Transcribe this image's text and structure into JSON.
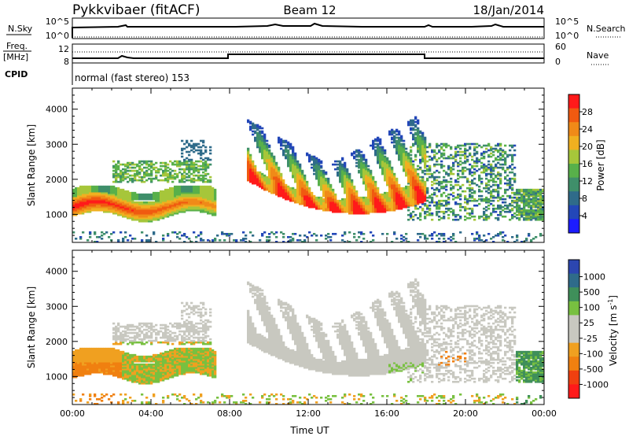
{
  "header": {
    "station": "Pykkvibaer (fitACF)",
    "beam": "Beam 12",
    "date": "18/Jan/2014"
  },
  "top_panels": {
    "noise": {
      "left_label": "N.Sky",
      "right_label": "N.Search",
      "tick_top": "10^5",
      "tick_bottom": "10^0",
      "right_tick_top": "10^5",
      "right_tick_bottom": "10^0"
    },
    "freq": {
      "left_label_line1": "Freq.",
      "left_label_line2": "[MHz]",
      "tick_top": "12",
      "tick_bottom": "8",
      "right_label": "Nave",
      "right_tick_top": "60",
      "right_tick_bottom": "0"
    },
    "cpid": {
      "label": "CPID",
      "text": "normal (fast stereo) 153"
    }
  },
  "colors": {
    "power": [
      "#1c1cff",
      "#2347b8",
      "#2f6b8a",
      "#3f8f6a",
      "#58b04a",
      "#a6c63a",
      "#f0b020",
      "#f08a18",
      "#f05a10",
      "#ff1a1a"
    ],
    "velocity": [
      "#2c46b0",
      "#2f6b8a",
      "#3f8f5a",
      "#78c040",
      "#c8c8c0",
      "#c8c8c0",
      "#f0a020",
      "#f08010",
      "#f04010",
      "#ff1a1a"
    ]
  },
  "chart_data": [
    {
      "type": "heatmap",
      "name": "power",
      "ylabel": "Slant Range [km]",
      "xlabel": "Time UT",
      "x_ticks": [
        "00:00",
        "04:00",
        "08:00",
        "12:00",
        "16:00",
        "20:00",
        "00:00"
      ],
      "y_ticks": [
        "1000",
        "2000",
        "3000",
        "4000"
      ],
      "ylim": [
        200,
        4600
      ],
      "colorbar_label": "Power [dB]",
      "colorbar_ticks": [
        "4",
        "8",
        "12",
        "16",
        "20",
        "24",
        "28"
      ]
    },
    {
      "type": "heatmap",
      "name": "velocity",
      "ylabel": "Slant Range [km]",
      "xlabel": "Time UT",
      "x_ticks": [
        "00:00",
        "04:00",
        "08:00",
        "12:00",
        "16:00",
        "20:00",
        "00:00"
      ],
      "y_ticks": [
        "1000",
        "2000",
        "3000",
        "4000"
      ],
      "ylim": [
        200,
        4600
      ],
      "colorbar_label": "Velocity [m s-1]",
      "colorbar_ticks": [
        "1000",
        "500",
        "100",
        "25",
        "-25",
        "-100",
        "-500",
        "-1000"
      ]
    }
  ],
  "axis": {
    "x_title": "Time UT"
  }
}
